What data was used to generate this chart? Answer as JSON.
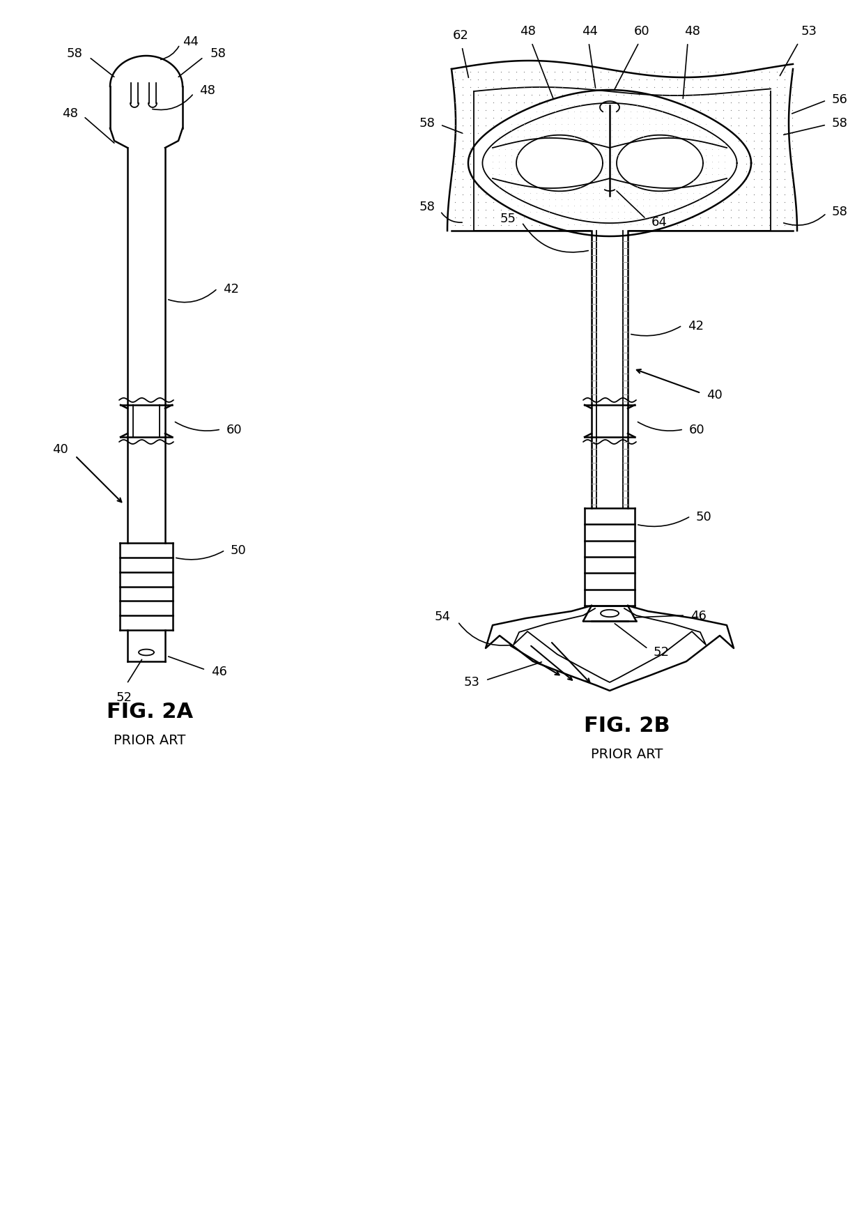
{
  "fig_label_left": "FIG. 2A",
  "fig_subtitle_left": "PRIOR ART",
  "fig_label_right": "FIG. 2B",
  "fig_subtitle_right": "PRIOR ART",
  "bg": "#ffffff",
  "lc": "#000000",
  "label_fs": 13,
  "title_fs": 22,
  "sub_fs": 14
}
